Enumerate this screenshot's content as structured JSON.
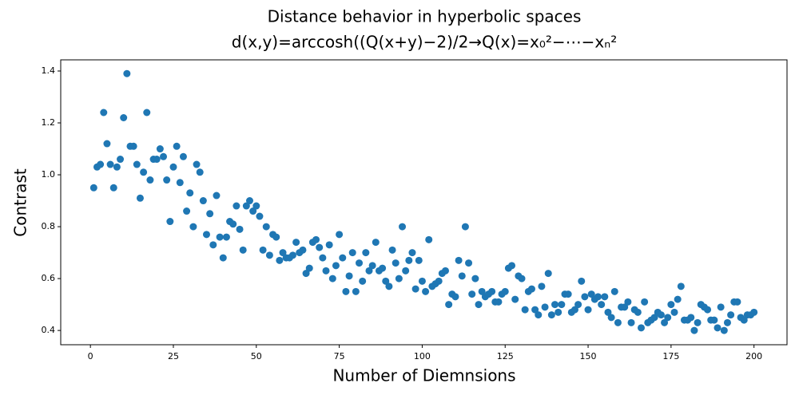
{
  "chart_data": {
    "type": "scatter",
    "title": "Distance behavior in hyperbolic spaces",
    "subtitle": "d(x,y)=arccosh((Q(x+y)−2)/2→Q(x)=x₀²−⋯−xₙ²",
    "x_label": "Number of Diemnsions",
    "y_label": "Contrast",
    "color": "#1f77b4",
    "xlim": [
      -8.95,
      209.95
    ],
    "ylim": [
      0.345,
      1.443
    ],
    "xticks": [
      0,
      25,
      50,
      75,
      100,
      125,
      150,
      175,
      200
    ],
    "yticks": [
      0.4,
      0.6,
      0.8,
      {
        "value": 1,
        "label": "1.0"
      },
      1.2,
      1.4
    ],
    "x": [
      1,
      2,
      3,
      4,
      5,
      6,
      7,
      8,
      9,
      10,
      11,
      12,
      13,
      14,
      15,
      16,
      17,
      18,
      19,
      20,
      21,
      22,
      23,
      24,
      25,
      26,
      27,
      28,
      29,
      30,
      31,
      32,
      33,
      34,
      35,
      36,
      37,
      38,
      39,
      40,
      41,
      42,
      43,
      44,
      45,
      46,
      47,
      48,
      49,
      50,
      51,
      52,
      53,
      54,
      55,
      56,
      57,
      58,
      59,
      60,
      61,
      62,
      63,
      64,
      65,
      66,
      67,
      68,
      69,
      70,
      71,
      72,
      73,
      74,
      75,
      76,
      77,
      78,
      79,
      80,
      81,
      82,
      83,
      84,
      85,
      86,
      87,
      88,
      89,
      90,
      91,
      92,
      93,
      94,
      95,
      96,
      97,
      98,
      99,
      100,
      101,
      102,
      103,
      104,
      105,
      106,
      107,
      108,
      109,
      110,
      111,
      112,
      113,
      114,
      115,
      116,
      117,
      118,
      119,
      120,
      121,
      122,
      123,
      124,
      125,
      126,
      127,
      128,
      129,
      130,
      131,
      132,
      133,
      134,
      135,
      136,
      137,
      138,
      139,
      140,
      141,
      142,
      143,
      144,
      145,
      146,
      147,
      148,
      149,
      150,
      151,
      152,
      153,
      154,
      155,
      156,
      157,
      158,
      159,
      160,
      161,
      162,
      163,
      164,
      165,
      166,
      167,
      168,
      169,
      170,
      171,
      172,
      173,
      174,
      175,
      176,
      177,
      178,
      179,
      180,
      181,
      182,
      183,
      184,
      185,
      186,
      187,
      188,
      189,
      190,
      191,
      192,
      193,
      194,
      195,
      196,
      197,
      198,
      199,
      200
    ],
    "values": [
      0.95,
      1.03,
      1.04,
      1.24,
      1.12,
      1.04,
      0.95,
      1.03,
      1.06,
      1.22,
      1.39,
      1.11,
      1.11,
      1.04,
      0.91,
      1.01,
      1.24,
      0.98,
      1.06,
      1.06,
      1.1,
      1.07,
      0.98,
      0.82,
      1.03,
      1.11,
      0.97,
      1.07,
      0.86,
      0.93,
      0.8,
      1.04,
      1.01,
      0.9,
      0.77,
      0.85,
      0.73,
      0.92,
      0.76,
      0.68,
      0.76,
      0.82,
      0.81,
      0.88,
      0.79,
      0.71,
      0.88,
      0.9,
      0.86,
      0.88,
      0.84,
      0.71,
      0.8,
      0.69,
      0.77,
      0.76,
      0.67,
      0.7,
      0.68,
      0.68,
      0.69,
      0.74,
      0.7,
      0.71,
      0.62,
      0.64,
      0.74,
      0.75,
      0.72,
      0.68,
      0.63,
      0.73,
      0.6,
      0.65,
      0.77,
      0.68,
      0.55,
      0.61,
      0.7,
      0.55,
      0.66,
      0.59,
      0.7,
      0.63,
      0.65,
      0.74,
      0.63,
      0.64,
      0.59,
      0.57,
      0.71,
      0.66,
      0.6,
      0.8,
      0.63,
      0.67,
      0.7,
      0.56,
      0.67,
      0.59,
      0.55,
      0.75,
      0.57,
      0.58,
      0.59,
      0.62,
      0.63,
      0.5,
      0.54,
      0.53,
      0.67,
      0.61,
      0.8,
      0.66,
      0.54,
      0.6,
      0.5,
      0.55,
      0.53,
      0.54,
      0.55,
      0.51,
      0.51,
      0.54,
      0.55,
      0.64,
      0.65,
      0.52,
      0.61,
      0.6,
      0.48,
      0.55,
      0.56,
      0.48,
      0.46,
      0.57,
      0.49,
      0.62,
      0.46,
      0.5,
      0.47,
      0.5,
      0.54,
      0.54,
      0.47,
      0.48,
      0.5,
      0.59,
      0.53,
      0.48,
      0.54,
      0.52,
      0.53,
      0.5,
      0.53,
      0.47,
      0.45,
      0.55,
      0.43,
      0.49,
      0.49,
      0.51,
      0.43,
      0.48,
      0.47,
      0.41,
      0.51,
      0.43,
      0.44,
      0.45,
      0.47,
      0.46,
      0.43,
      0.45,
      0.5,
      0.47,
      0.52,
      0.57,
      0.44,
      0.44,
      0.45,
      0.4,
      0.43,
      0.5,
      0.49,
      0.48,
      0.44,
      0.44,
      0.41,
      0.49,
      0.4,
      0.43,
      0.46,
      0.51,
      0.51,
      0.45,
      0.44,
      0.46,
      0.46,
      0.47
    ]
  }
}
